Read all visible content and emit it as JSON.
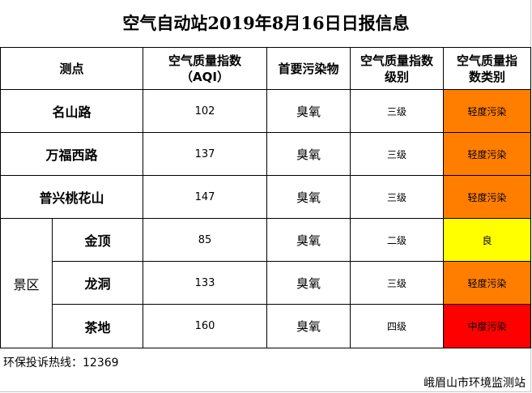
{
  "title": "空气自动站2019年8月16日日报信息",
  "headers": {
    "station": "测点",
    "aqi_line1": "空气质量指数",
    "aqi_line2": "（AQI）",
    "pollutant": "首要污染物",
    "level_line1": "空气质量指数",
    "level_line2": "级别",
    "category_line1": "空气质量指",
    "category_line2": "数类别"
  },
  "zone_label": "景区",
  "rows": [
    {
      "station": "名山路",
      "aqi": "102",
      "pollutant": "臭氧",
      "level": "三级",
      "category": "轻度污染",
      "color": "#FF7E00"
    },
    {
      "station": "万福西路",
      "aqi": "137",
      "pollutant": "臭氧",
      "level": "三级",
      "category": "轻度污染",
      "color": "#FF7E00"
    },
    {
      "station": "普兴桃花山",
      "aqi": "147",
      "pollutant": "臭氧",
      "level": "三级",
      "category": "轻度污染",
      "color": "#FF7E00"
    },
    {
      "station": "金顶",
      "aqi": "85",
      "pollutant": "臭氧",
      "level": "二级",
      "category": "良",
      "color": "#FFFF00"
    },
    {
      "station": "龙洞",
      "aqi": "133",
      "pollutant": "臭氧",
      "level": "三级",
      "category": "轻度污染",
      "color": "#FF7E00"
    },
    {
      "station": "茶地",
      "aqi": "160",
      "pollutant": "臭氧",
      "level": "四级",
      "category": "中度污染",
      "color": "#FF0000"
    }
  ],
  "hotline": "环保投诉热线：12369",
  "footer": "峨眉山市环境监测站"
}
